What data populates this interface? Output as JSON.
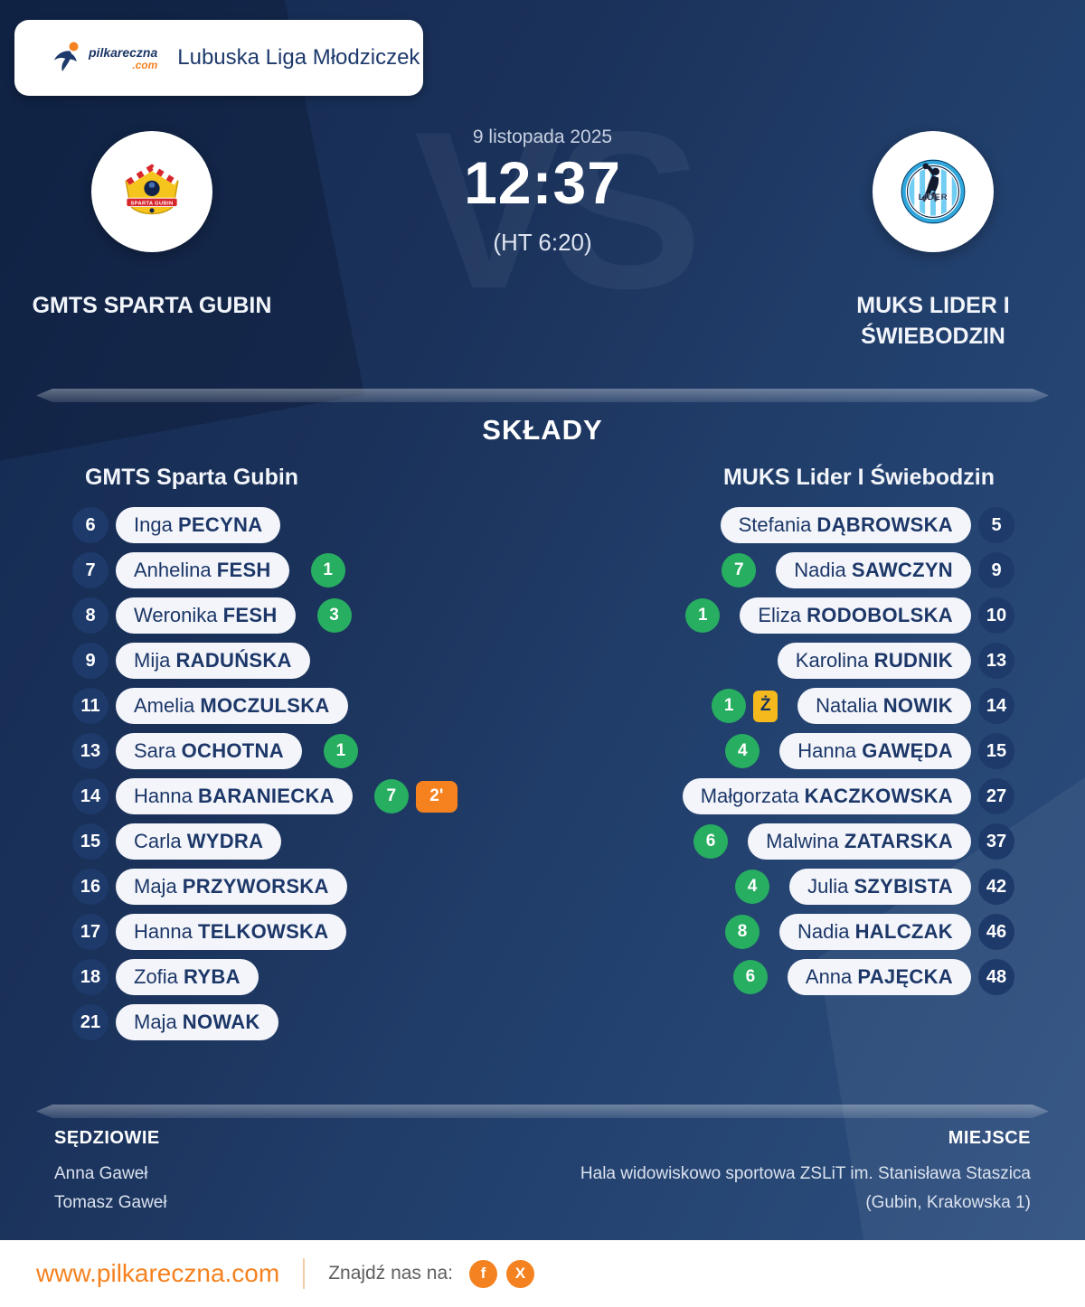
{
  "header": {
    "brand_name": "pilkareczna",
    "brand_tld": ".com",
    "league": "Lubuska Liga Młodziczek"
  },
  "match": {
    "date": "9 listopada 2025",
    "score": "12:37",
    "halftime": "(HT 6:20)",
    "vs_watermark": "VS",
    "home_name": "GMTS SPARTA GUBIN",
    "away_name": "MUKS LIDER I ŚWIEBODZIN"
  },
  "lineups": {
    "title": "SKŁADY",
    "home": {
      "team": "GMTS Sparta Gubin",
      "players": [
        {
          "number": "6",
          "first": "Inga",
          "last": "PECYNA"
        },
        {
          "number": "7",
          "first": "Anhelina",
          "last": "FESH",
          "goals": "1"
        },
        {
          "number": "8",
          "first": "Weronika",
          "last": "FESH",
          "goals": "3"
        },
        {
          "number": "9",
          "first": "Mija",
          "last": "RADUŃSKA"
        },
        {
          "number": "11",
          "first": "Amelia",
          "last": "MOCZULSKA"
        },
        {
          "number": "13",
          "first": "Sara",
          "last": "OCHOTNA",
          "goals": "1"
        },
        {
          "number": "14",
          "first": "Hanna",
          "last": "BARANIECKA",
          "goals": "7",
          "suspension": "2'"
        },
        {
          "number": "15",
          "first": "Carla",
          "last": "WYDRA"
        },
        {
          "number": "16",
          "first": "Maja",
          "last": "PRZYWORSKA"
        },
        {
          "number": "17",
          "first": "Hanna",
          "last": "TELKOWSKA"
        },
        {
          "number": "18",
          "first": "Zofia",
          "last": "RYBA"
        },
        {
          "number": "21",
          "first": "Maja",
          "last": "NOWAK"
        }
      ]
    },
    "away": {
      "team": "MUKS Lider I Świebodzin",
      "players": [
        {
          "number": "5",
          "first": "Stefania",
          "last": "DĄBROWSKA"
        },
        {
          "number": "9",
          "first": "Nadia",
          "last": "SAWCZYN",
          "goals": "7"
        },
        {
          "number": "10",
          "first": "Eliza",
          "last": "RODOBOLSKA",
          "goals": "1"
        },
        {
          "number": "13",
          "first": "Karolina",
          "last": "RUDNIK"
        },
        {
          "number": "14",
          "first": "Natalia",
          "last": "NOWIK",
          "goals": "1",
          "yellow_card": "Ż"
        },
        {
          "number": "15",
          "first": "Hanna",
          "last": "GAWĘDA",
          "goals": "4"
        },
        {
          "number": "27",
          "first": "Małgorzata",
          "last": "KACZKOWSKA"
        },
        {
          "number": "37",
          "first": "Malwina",
          "last": "ZATARSKA",
          "goals": "6"
        },
        {
          "number": "42",
          "first": "Julia",
          "last": "SZYBISTA",
          "goals": "4"
        },
        {
          "number": "46",
          "first": "Nadia",
          "last": "HALCZAK",
          "goals": "8"
        },
        {
          "number": "48",
          "first": "Anna",
          "last": "PAJĘCKA",
          "goals": "6"
        }
      ]
    }
  },
  "footer": {
    "referees_label": "SĘDZIOWIE",
    "referees": [
      "Anna Gaweł",
      "Tomasz Gaweł"
    ],
    "venue_label": "MIEJSCE",
    "venue_lines": [
      "Hala widowiskowo sportowa ZSLiT im. Stanisława Staszica",
      "(Gubin, Krakowska 1)"
    ]
  },
  "bottom_bar": {
    "website": "www.pilkareczna.com",
    "find_us": "Znajdź nas na:",
    "facebook_glyph": "f",
    "x_glyph": "X"
  },
  "colors": {
    "accent_orange": "#f58220",
    "goal_green": "#27ae60",
    "yellow_card": "#f6b91d",
    "suspension_orange": "#f5821f",
    "navy_text": "#1c3768",
    "pill_bg": "#f3f5fa"
  }
}
